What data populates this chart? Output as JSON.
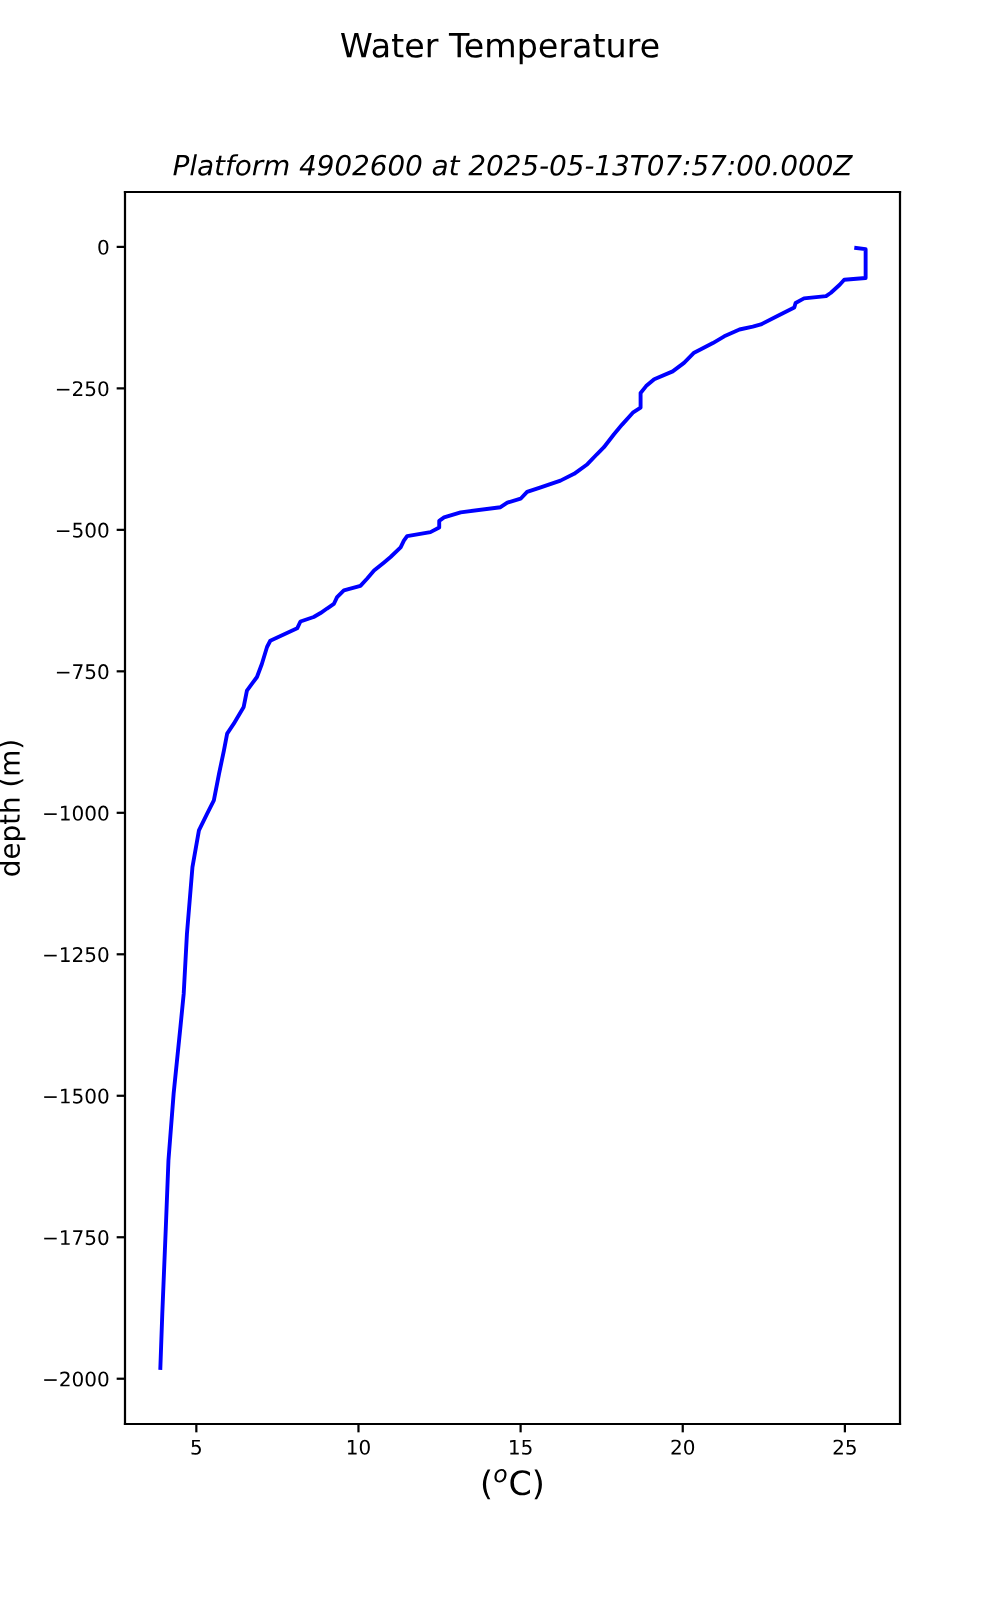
{
  "chart_data": {
    "type": "line",
    "title": "Water Temperature",
    "subtitle": "Platform 4902600 at 2025-05-13T07:57:00.000Z",
    "xlabel": "($^{o}$C)",
    "ylabel": "depth (m)",
    "series": [
      {
        "color": "#0000ff",
        "x": [
          25.35,
          25.64,
          25.64,
          24.98,
          24.84,
          24.57,
          24.42,
          23.74,
          23.48,
          23.44,
          22.92,
          22.41,
          22.16,
          21.75,
          21.28,
          20.93,
          20.56,
          20.35,
          20.04,
          19.69,
          19.12,
          18.87,
          18.7,
          18.7,
          18.46,
          18.13,
          17.88,
          17.57,
          17.36,
          17.06,
          16.65,
          16.23,
          15.62,
          15.2,
          15.0,
          14.59,
          14.38,
          13.15,
          12.64,
          12.49,
          12.49,
          12.22,
          11.5,
          11.4,
          11.3,
          10.99,
          10.78,
          10.48,
          10.27,
          10.06,
          9.55,
          9.34,
          9.24,
          9.03,
          8.83,
          8.62,
          8.21,
          8.11,
          7.28,
          7.18,
          7.02,
          6.87,
          6.56,
          6.46,
          6.15,
          5.95,
          5.85,
          5.7,
          5.54,
          5.33,
          5.08,
          4.88,
          4.71,
          4.61,
          4.51,
          4.3,
          4.14,
          4.06,
          3.95,
          3.89
        ],
        "values": [
          -2,
          -4,
          -55,
          -58,
          -67,
          -81,
          -87,
          -91,
          -99,
          -107,
          -122,
          -137,
          -141,
          -146,
          -158,
          -170,
          -181,
          -187,
          -205,
          -220,
          -234,
          -246,
          -258,
          -284,
          -293,
          -314,
          -331,
          -354,
          -366,
          -384,
          -401,
          -413,
          -425,
          -433,
          -445,
          -452,
          -460,
          -469,
          -478,
          -484,
          -496,
          -504,
          -511,
          -519,
          -531,
          -548,
          -558,
          -572,
          -586,
          -599,
          -607,
          -619,
          -631,
          -639,
          -647,
          -654,
          -662,
          -674,
          -696,
          -707,
          -737,
          -760,
          -784,
          -813,
          -843,
          -860,
          -890,
          -931,
          -978,
          -1002,
          -1031,
          -1096,
          -1214,
          -1320,
          -1378,
          -1496,
          -1614,
          -1731,
          -1885,
          -1981
        ]
      }
    ],
    "xlim": [
      2.8,
      26.7
    ],
    "ylim": [
      -2080,
      97
    ],
    "xticks": [
      5,
      10,
      15,
      20,
      25
    ],
    "yticks": [
      0,
      -250,
      -500,
      -750,
      -1000,
      -1250,
      -1500,
      -1750,
      -2000
    ],
    "grid": false,
    "marker": "none",
    "line_style": "solid"
  }
}
